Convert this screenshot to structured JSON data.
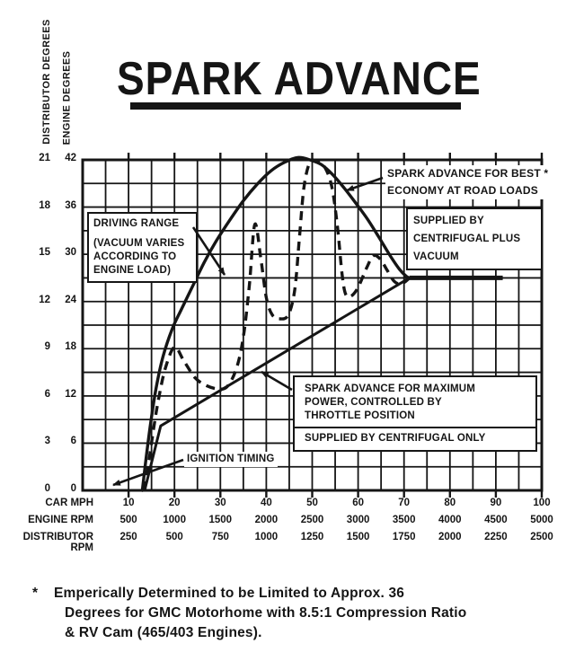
{
  "page": {
    "title": "SPARK ADVANCE"
  },
  "chart_data": {
    "type": "line",
    "title": "SPARK ADVANCE",
    "grid": true,
    "y_axis": {
      "col_titles": [
        "DISTRIBUTOR DEGREES",
        "ENGINE DEGREES"
      ],
      "distributor_degrees": [
        21,
        18,
        15,
        12,
        9,
        6,
        3,
        0
      ],
      "engine_degrees": [
        42,
        36,
        30,
        24,
        18,
        12,
        6,
        0
      ],
      "engine_degrees_range": [
        0,
        42
      ],
      "distributor_degrees_range": [
        0,
        21
      ]
    },
    "x_axis": {
      "mph_range": [
        0,
        100
      ],
      "major_tick_mph": [
        10,
        20,
        30,
        40,
        50,
        60,
        70,
        80,
        90,
        100
      ],
      "rows": [
        {
          "label": "CAR MPH",
          "values": [
            "10",
            "20",
            "30",
            "40",
            "50",
            "60",
            "70",
            "80",
            "90",
            "100"
          ]
        },
        {
          "label": "ENGINE RPM",
          "values": [
            "500",
            "1000",
            "1500",
            "2000",
            "2500",
            "3000",
            "3500",
            "4000",
            "4500",
            "5000"
          ]
        },
        {
          "label": "DISTRIBUTOR RPM",
          "values": [
            "250",
            "500",
            "750",
            "1000",
            "1250",
            "1500",
            "1750",
            "2000",
            "2250",
            "2500"
          ]
        }
      ]
    },
    "series": [
      {
        "name": "spark-advance-best-economy",
        "label": "SPARK ADVANCE FOR BEST ECONOMY AT ROAD LOADS",
        "note": "SUPPLIED BY CENTRIFUGAL PLUS VACUUM",
        "style": "solid",
        "points_mph_engine_deg": [
          [
            13,
            0
          ],
          [
            13.8,
            4
          ],
          [
            14.8,
            8.5
          ],
          [
            16,
            13
          ],
          [
            17.5,
            17
          ],
          [
            19.5,
            20.5
          ],
          [
            21.5,
            23
          ],
          [
            24,
            26
          ],
          [
            26.5,
            29
          ],
          [
            29,
            31.6
          ],
          [
            32,
            34.3
          ],
          [
            35,
            36.8
          ],
          [
            38,
            38.9
          ],
          [
            41,
            40.6
          ],
          [
            44,
            41.7
          ],
          [
            47,
            42.3
          ],
          [
            49.5,
            42
          ],
          [
            52,
            41.4
          ],
          [
            54.5,
            40.1
          ],
          [
            57,
            38.4
          ],
          [
            59.5,
            36.5
          ],
          [
            62,
            34.5
          ],
          [
            64.5,
            32.2
          ],
          [
            67,
            29.8
          ],
          [
            69,
            28.1
          ],
          [
            70.5,
            27.2
          ],
          [
            71.2,
            27
          ]
        ]
      },
      {
        "name": "spark-advance-maximum-power",
        "label": "SPARK ADVANCE FOR MAXIMUM POWER, CONTROLLED BY THROTTLE POSITION",
        "note": "VACUUM VARIES ACCORDING TO ENGINE LOAD",
        "style": "dashed",
        "points_mph_engine_deg": [
          [
            13.5,
            0
          ],
          [
            14.5,
            4
          ],
          [
            15.5,
            8
          ],
          [
            16.5,
            11.5
          ],
          [
            18,
            15.5
          ],
          [
            20,
            18.2
          ],
          [
            22,
            16.5
          ],
          [
            24.5,
            14.3
          ],
          [
            27,
            13.3
          ],
          [
            29.5,
            12.9
          ],
          [
            31.5,
            13.2
          ],
          [
            33.5,
            15.5
          ],
          [
            35,
            19.5
          ],
          [
            36.3,
            26
          ],
          [
            37.5,
            33.8
          ],
          [
            38.8,
            29.5
          ],
          [
            40,
            24.5
          ],
          [
            41.3,
            22.3
          ],
          [
            43,
            21.8
          ],
          [
            44.8,
            22.3
          ],
          [
            46.2,
            25.5
          ],
          [
            47.2,
            32
          ],
          [
            48.2,
            38.5
          ],
          [
            49.5,
            41.7
          ],
          [
            51,
            41.8
          ],
          [
            52.8,
            41
          ],
          [
            54.3,
            38.5
          ],
          [
            55.5,
            33.5
          ],
          [
            56.5,
            27.5
          ],
          [
            57.3,
            24.9
          ],
          [
            58.5,
            24.7
          ],
          [
            60,
            25.8
          ],
          [
            61.8,
            28.2
          ],
          [
            63.3,
            29.8
          ],
          [
            64.8,
            29.4
          ],
          [
            66.3,
            28
          ],
          [
            67.8,
            26.6
          ],
          [
            69.2,
            26.2
          ],
          [
            70.2,
            26.5
          ],
          [
            71.2,
            27
          ]
        ]
      },
      {
        "name": "centrifugal-only-line",
        "label": "SUPPLIED BY CENTRIFUGAL ONLY",
        "style": "solid",
        "points_mph_engine_deg": [
          [
            13.5,
            0
          ],
          [
            17,
            8.2
          ],
          [
            71.2,
            27
          ],
          [
            91.5,
            27
          ]
        ]
      }
    ],
    "annotations": {
      "economy": [
        "SPARK ADVANCE FOR BEST *",
        "ECONOMY AT ROAD LOADS"
      ],
      "supplied_vacuum": [
        "SUPPLIED BY",
        "CENTRIFUGAL PLUS",
        "VACUUM"
      ],
      "driving_range_title": "DRIVING RANGE",
      "driving_range_sub": "(VACUUM VARIES ACCORDING TO ENGINE LOAD)",
      "max_power": [
        "SPARK ADVANCE FOR MAXIMUM",
        "POWER, CONTROLLED BY",
        "THROTTLE POSITION"
      ],
      "supplied_centrifugal": "SUPPLIED BY CENTRIFUGAL ONLY",
      "ignition_timing": "IGNITION TIMING"
    },
    "ink_color": "#151515"
  },
  "footnote": {
    "marker": "*",
    "lines": [
      "Emperically Determined to be Limited to Approx. 36",
      "Degrees for GMC Motorhome with 8.5:1 Compression Ratio",
      "& RV Cam (465/403 Engines)."
    ]
  }
}
